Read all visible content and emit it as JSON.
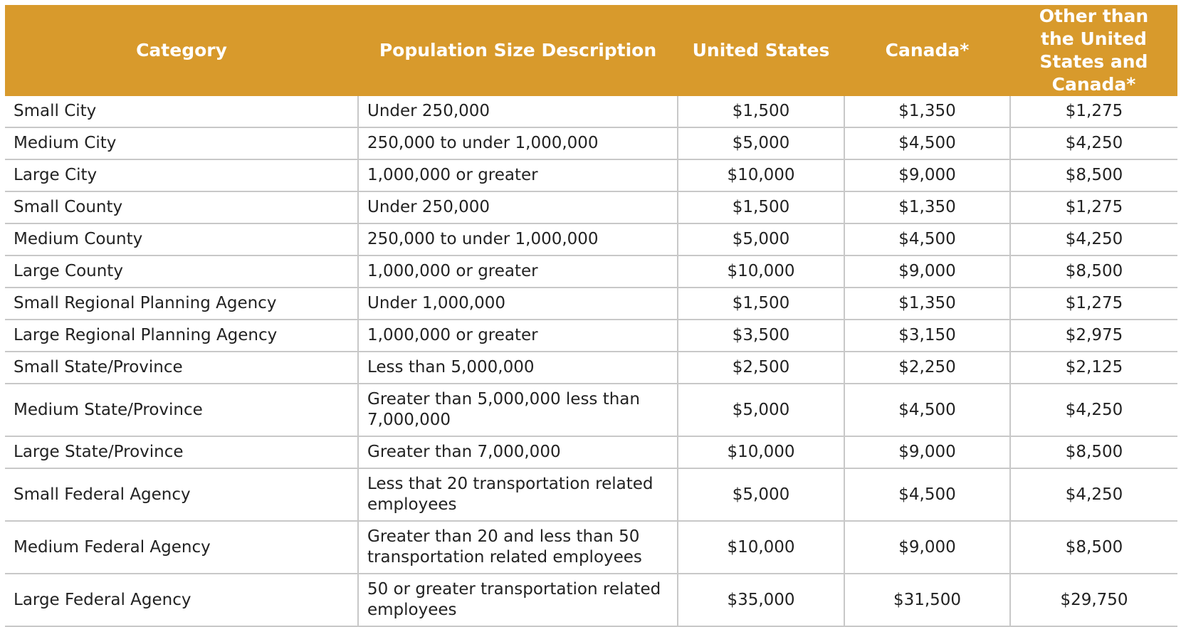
{
  "table": {
    "headers": [
      "Category",
      "Population Size Description",
      "United States",
      "Canada*",
      "Other than the United States and Canada*"
    ],
    "rows": [
      {
        "category": "Small City",
        "description": "Under 250,000",
        "us": "$1,500",
        "canada": "$1,350",
        "other": "$1,275"
      },
      {
        "category": "Medium City",
        "description": "250,000 to under 1,000,000",
        "us": "$5,000",
        "canada": "$4,500",
        "other": "$4,250"
      },
      {
        "category": "Large City",
        "description": "1,000,000 or greater",
        "us": "$10,000",
        "canada": "$9,000",
        "other": "$8,500"
      },
      {
        "category": "Small County",
        "description": "Under 250,000",
        "us": "$1,500",
        "canada": "$1,350",
        "other": "$1,275"
      },
      {
        "category": "Medium County",
        "description": "250,000 to under 1,000,000",
        "us": "$5,000",
        "canada": "$4,500",
        "other": "$4,250"
      },
      {
        "category": "Large County",
        "description": "1,000,000 or greater",
        "us": "$10,000",
        "canada": "$9,000",
        "other": "$8,500"
      },
      {
        "category": "Small Regional Planning Agency",
        "description": "Under 1,000,000",
        "us": "$1,500",
        "canada": "$1,350",
        "other": "$1,275"
      },
      {
        "category": "Large Regional Planning Agency",
        "description": "1,000,000 or greater",
        "us": "$3,500",
        "canada": "$3,150",
        "other": "$2,975"
      },
      {
        "category": "Small State/Province",
        "description": "Less than 5,000,000",
        "us": "$2,500",
        "canada": "$2,250",
        "other": "$2,125"
      },
      {
        "category": "Medium State/Province",
        "description": "Greater than 5,000,000 less than 7,000,000",
        "us": "$5,000",
        "canada": "$4,500",
        "other": "$4,250"
      },
      {
        "category": "Large State/Province",
        "description": "Greater than 7,000,000",
        "us": "$10,000",
        "canada": "$9,000",
        "other": "$8,500"
      },
      {
        "category": "Small Federal Agency",
        "description": "Less that 20 transportation related employees",
        "us": "$5,000",
        "canada": "$4,500",
        "other": "$4,250"
      },
      {
        "category": "Medium Federal Agency",
        "description": "Greater than 20 and less than 50 transportation related employees",
        "us": "$10,000",
        "canada": "$9,000",
        "other": "$8,500"
      },
      {
        "category": "Large Federal Agency",
        "description": "50 or greater transportation related employees",
        "us": "$35,000",
        "canada": "$31,500",
        "other": "$29,750"
      }
    ]
  }
}
